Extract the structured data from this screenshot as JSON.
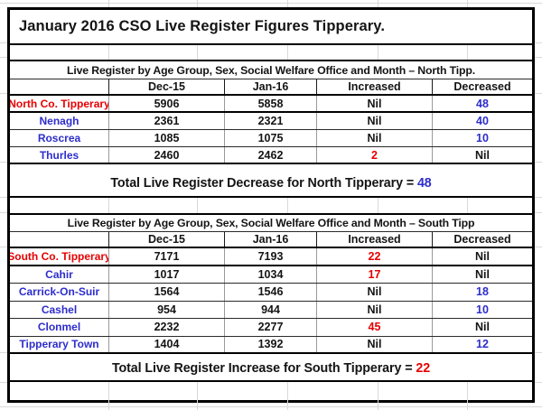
{
  "title": "January 2016 CSO Live Register Figures Tipperary.",
  "colors": {
    "red": "#e60000",
    "blue": "#2d2dcc",
    "text": "#141414",
    "grid_faint": "#d9d9d9",
    "border": "#000000"
  },
  "north": {
    "section_header": "Live Register by Age Group, Sex, Social Welfare Office and Month – North Tipp.",
    "columns": {
      "c1": "Dec-15",
      "c2": "Jan-16",
      "c3": "Increased",
      "c4": "Decreased"
    },
    "rows": [
      {
        "label": {
          "v": "North Co. Tipperary",
          "c": "red"
        },
        "dec15": "5906",
        "jan16": "5858",
        "inc": {
          "v": "Nil",
          "c": "black"
        },
        "dec": {
          "v": "48",
          "c": "blue"
        }
      },
      {
        "label": {
          "v": "Nenagh",
          "c": "blue"
        },
        "dec15": "2361",
        "jan16": "2321",
        "inc": {
          "v": "Nil",
          "c": "black"
        },
        "dec": {
          "v": "40",
          "c": "blue"
        }
      },
      {
        "label": {
          "v": "Roscrea",
          "c": "blue"
        },
        "dec15": "1085",
        "jan16": "1075",
        "inc": {
          "v": "Nil",
          "c": "black"
        },
        "dec": {
          "v": "10",
          "c": "blue"
        }
      },
      {
        "label": {
          "v": "Thurles",
          "c": "blue"
        },
        "dec15": "2460",
        "jan16": "2462",
        "inc": {
          "v": "2",
          "c": "red"
        },
        "dec": {
          "v": "Nil",
          "c": "black"
        }
      }
    ],
    "total": {
      "prefix": "Total Live Register Decrease for North Tipperary = ",
      "value": "48",
      "value_color": "blue"
    }
  },
  "south": {
    "section_header": "Live Register by Age Group, Sex, Social Welfare Office and Month – South Tipp",
    "columns": {
      "c1": "Dec-15",
      "c2": "Jan-16",
      "c3": "Increased",
      "c4": "Decreased"
    },
    "rows": [
      {
        "label": {
          "v": "South Co. Tipperary",
          "c": "red"
        },
        "dec15": "7171",
        "jan16": "7193",
        "inc": {
          "v": "22",
          "c": "red"
        },
        "dec": {
          "v": "Nil",
          "c": "black"
        }
      },
      {
        "label": {
          "v": "Cahir",
          "c": "blue"
        },
        "dec15": "1017",
        "jan16": "1034",
        "inc": {
          "v": "17",
          "c": "red"
        },
        "dec": {
          "v": "Nil",
          "c": "black"
        }
      },
      {
        "label": {
          "v": "Carrick-On-Suir",
          "c": "blue"
        },
        "dec15": "1564",
        "jan16": "1546",
        "inc": {
          "v": "Nil",
          "c": "black"
        },
        "dec": {
          "v": "18",
          "c": "blue"
        }
      },
      {
        "label": {
          "v": "Cashel",
          "c": "blue"
        },
        "dec15": "954",
        "jan16": "944",
        "inc": {
          "v": "Nil",
          "c": "black"
        },
        "dec": {
          "v": "10",
          "c": "blue"
        }
      },
      {
        "label": {
          "v": "Clonmel",
          "c": "blue"
        },
        "dec15": "2232",
        "jan16": "2277",
        "inc": {
          "v": "45",
          "c": "red"
        },
        "dec": {
          "v": "Nil",
          "c": "black"
        }
      },
      {
        "label": {
          "v": "Tipperary Town",
          "c": "blue"
        },
        "dec15": "1404",
        "jan16": "1392",
        "inc": {
          "v": "Nil",
          "c": "black"
        },
        "dec": {
          "v": "12",
          "c": "blue"
        }
      }
    ],
    "total": {
      "prefix": "Total Live Register Increase for South Tipperary = ",
      "value": "22",
      "value_color": "red"
    }
  }
}
